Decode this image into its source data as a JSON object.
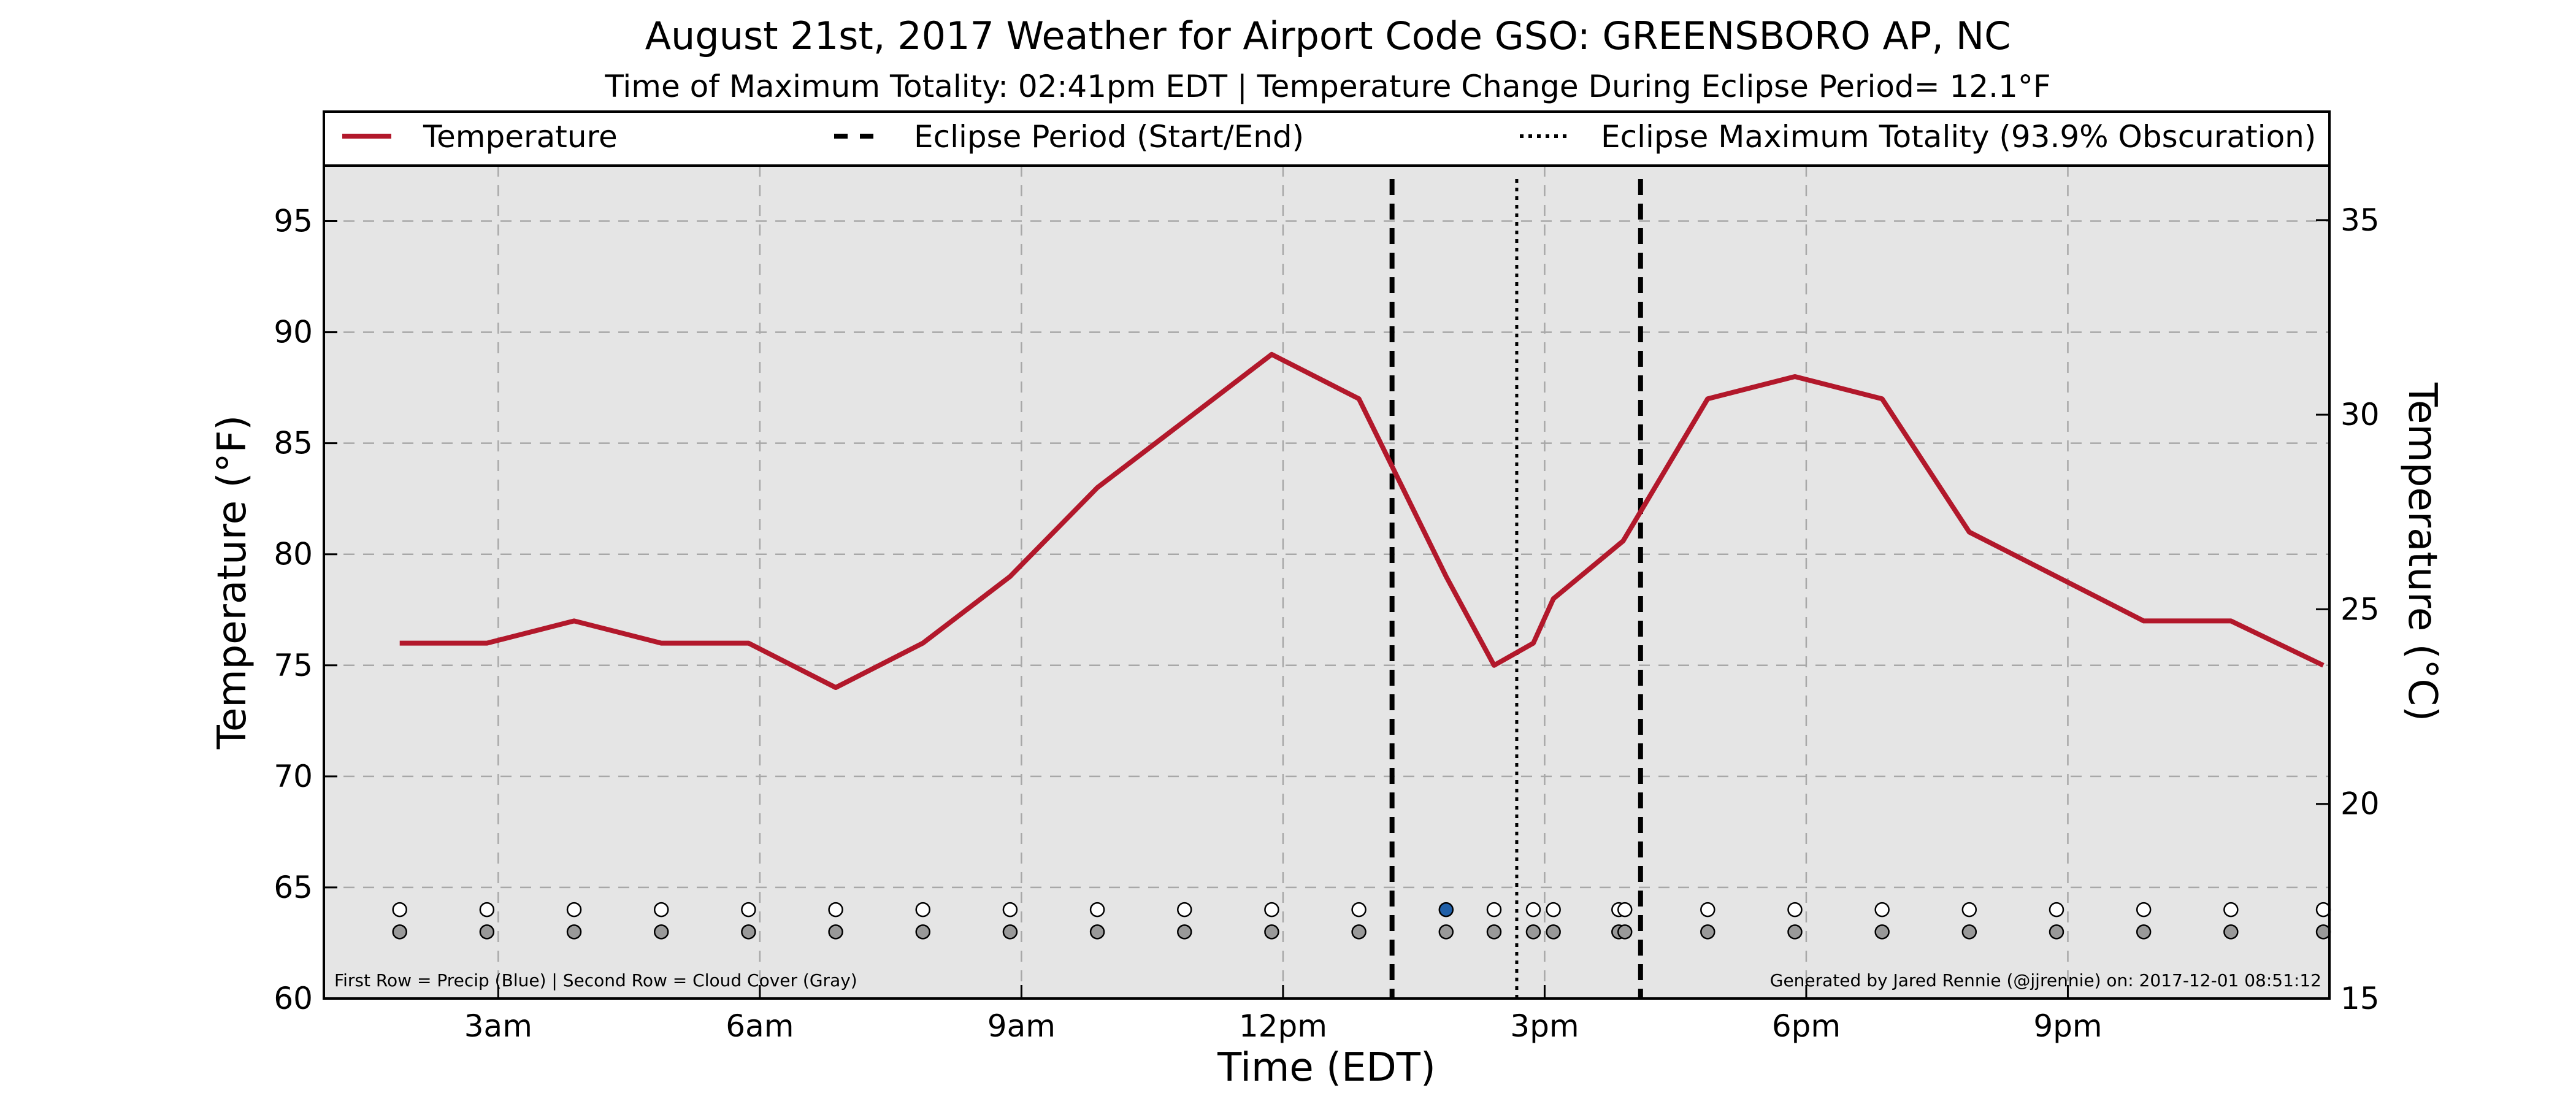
{
  "chart_data": {
    "type": "line",
    "title": "August 21st, 2017 Weather for Airport Code GSO: GREENSBORO  AP, NC",
    "subtitle": "Time of Maximum Totality: 02:41pm EDT | Temperature Change During Eclipse Period= 12.1°F",
    "xlabel": "Time (EDT)",
    "ylabel": "Temperature (°F)",
    "y2label": "Temperature (°C)",
    "xlim": [
      1.0,
      24.0
    ],
    "ylim": [
      60,
      97.5
    ],
    "y2lim": [
      15,
      36.4
    ],
    "grid": true,
    "legend_position": "top",
    "x_ticks": [
      {
        "x": 3,
        "label": "3am"
      },
      {
        "x": 6,
        "label": "6am"
      },
      {
        "x": 9,
        "label": "9am"
      },
      {
        "x": 12,
        "label": "12pm"
      },
      {
        "x": 15,
        "label": "3pm"
      },
      {
        "x": 18,
        "label": "6pm"
      },
      {
        "x": 21,
        "label": "9pm"
      }
    ],
    "y_ticks": [
      60,
      65,
      70,
      75,
      80,
      85,
      90,
      95
    ],
    "y2_ticks": [
      15,
      20,
      25,
      30,
      35
    ],
    "series": [
      {
        "name": "Temperature",
        "color": "#b2182b",
        "x": [
          1.87,
          2.87,
          3.87,
          4.87,
          5.87,
          6.87,
          7.87,
          8.87,
          9.87,
          10.87,
          11.87,
          12.87,
          13.87,
          14.42,
          14.87,
          15.1,
          15.9,
          16.87,
          17.87,
          18.87,
          19.87,
          20.87,
          21.87,
          22.87,
          23.93
        ],
        "y": [
          76,
          76,
          77,
          76,
          76,
          74,
          76,
          79,
          83,
          86,
          89,
          87,
          79,
          75,
          76,
          78,
          80.6,
          87,
          88,
          87,
          81,
          79,
          77,
          77,
          75
        ]
      }
    ],
    "vlines": [
      {
        "name": "Eclipse Period (Start/End)",
        "style": "dashed",
        "x": [
          13.25,
          16.1
        ]
      },
      {
        "name": "Eclipse Maximum Totality (93.9% Obscuration)",
        "style": "dotted",
        "x": [
          14.68
        ]
      }
    ],
    "obs_markers": {
      "precip": {
        "x": [
          1.87,
          2.87,
          3.87,
          4.87,
          5.87,
          6.87,
          7.87,
          8.87,
          9.87,
          10.87,
          11.87,
          12.87,
          13.87,
          14.42,
          14.87,
          15.1,
          15.85,
          15.92,
          16.87,
          17.87,
          18.87,
          19.87,
          20.87,
          21.87,
          22.87,
          23.93
        ],
        "filled": [
          false,
          false,
          false,
          false,
          false,
          false,
          false,
          false,
          false,
          false,
          false,
          false,
          true,
          false,
          false,
          false,
          false,
          false,
          false,
          false,
          false,
          false,
          false,
          false,
          false,
          false
        ],
        "fill_color": "#1f5fa8"
      },
      "cloud_cover": {
        "x": [
          1.87,
          2.87,
          3.87,
          4.87,
          5.87,
          6.87,
          7.87,
          8.87,
          9.87,
          10.87,
          11.87,
          12.87,
          13.87,
          14.42,
          14.87,
          15.1,
          15.85,
          15.92,
          16.87,
          17.87,
          18.87,
          19.87,
          20.87,
          21.87,
          22.87,
          23.93
        ],
        "fill_color": "#999999"
      }
    },
    "footnote_left": "First Row = Precip (Blue) | Second Row = Cloud Cover (Gray)",
    "footnote_right": "Generated by Jared Rennie (@jjrennie) on: 2017-12-01 08:51:12"
  }
}
